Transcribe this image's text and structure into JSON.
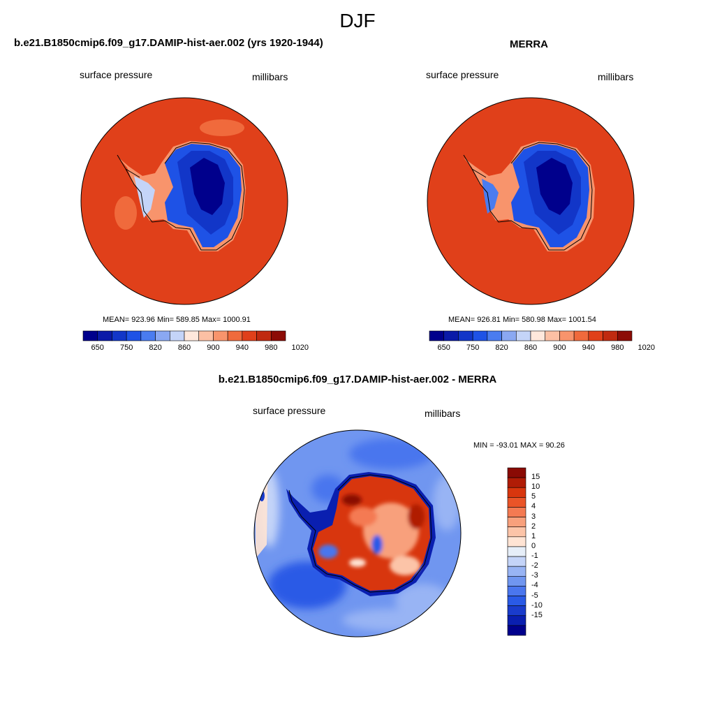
{
  "title": "DJF",
  "panels": {
    "model": {
      "title": "b.e21.B1850cmip6.f09_g17.DAMIP-hist-aer.002 (yrs 1920-1944)",
      "left_label": "surface pressure",
      "right_label": "millibars",
      "stats": "MEAN= 923.96  Min= 589.85  Max= 1000.91"
    },
    "obs": {
      "title": "MERRA",
      "left_label": "surface pressure",
      "right_label": "millibars",
      "stats": "MEAN= 926.81  Min= 580.98  Max= 1001.54"
    },
    "diff": {
      "title": "b.e21.B1850cmip6.f09_g17.DAMIP-hist-aer.002 - MERRA",
      "left_label": "surface pressure",
      "right_label": "millibars",
      "stats": "MIN = -93.01 MAX =  90.26"
    }
  },
  "abs_colorbar": {
    "colors": [
      "#00008c",
      "#0a1aa8",
      "#1236c8",
      "#1e52e6",
      "#4a7cf0",
      "#8aa8f2",
      "#c4d4f8",
      "#ffe8dc",
      "#fcc0a4",
      "#f8946c",
      "#f06a3c",
      "#e0401a",
      "#c02a10",
      "#8c0c06"
    ],
    "tick_labels": [
      "650",
      "750",
      "820",
      "860",
      "900",
      "940",
      "980",
      "1020"
    ]
  },
  "diff_colorbar": {
    "colors": [
      "#00008c",
      "#0a1fb0",
      "#1a3ccc",
      "#2a5ae6",
      "#4a76ee",
      "#7096f0",
      "#98b4f4",
      "#c4d4f8",
      "#e6eef8",
      "#ffe4d4",
      "#fcc4a8",
      "#f8a07c",
      "#f47a52",
      "#ea5428",
      "#d8360e",
      "#b01c06",
      "#8a0a04"
    ],
    "tick_labels": [
      "15",
      "10",
      "5",
      "4",
      "3",
      "2",
      "1",
      "0",
      "-1",
      "-2",
      "-3",
      "-4",
      "-5",
      "-10",
      "-15"
    ]
  }
}
